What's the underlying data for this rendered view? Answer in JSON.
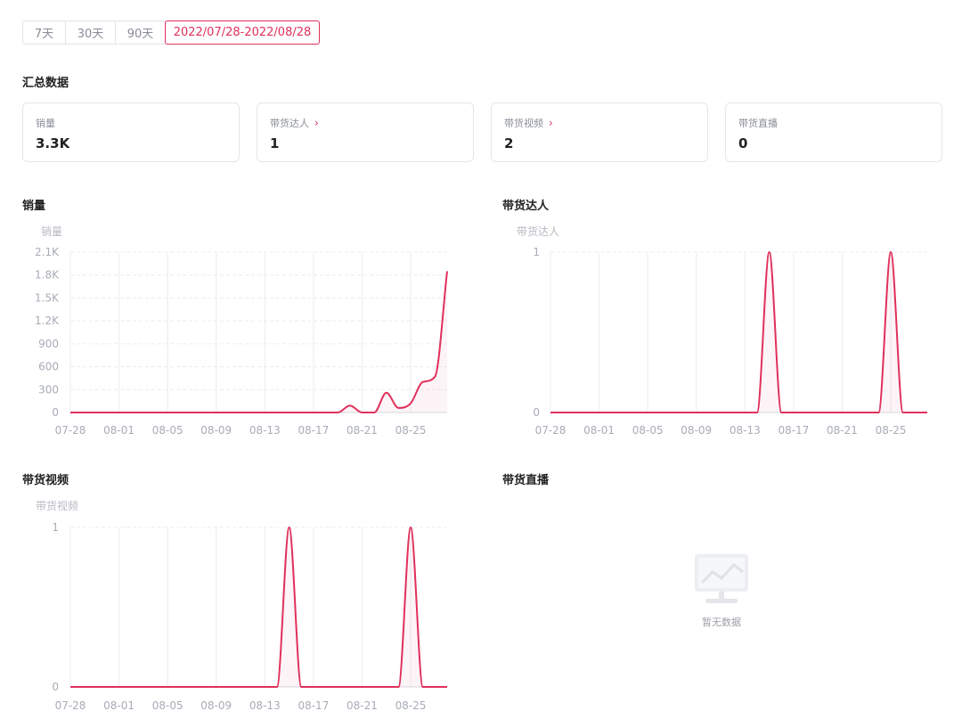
{
  "tabs": [
    {
      "label": "7天",
      "active": false
    },
    {
      "label": "30天",
      "active": false
    },
    {
      "label": "90天",
      "active": false
    },
    {
      "label": "2022/07/28-2022/08/28",
      "active": true
    }
  ],
  "summary": {
    "title": "汇总数据",
    "cards": [
      {
        "label": "销量",
        "value": "3.3K",
        "has_link": false
      },
      {
        "label": "带货达人",
        "value": "1",
        "has_link": true
      },
      {
        "label": "带货视频",
        "value": "2",
        "has_link": true
      },
      {
        "label": "带货直播",
        "value": "0",
        "has_link": false
      }
    ]
  },
  "sections": {
    "sales": "销量",
    "creators": "带货达人",
    "videos": "带货视频",
    "live": "带货直播"
  },
  "empty_state": {
    "message": "暂无数据",
    "icon": "chart-placeholder-icon"
  },
  "colors": {
    "accent": "#e0305b",
    "line": "#e0305b",
    "grid": "#ececf1"
  },
  "chart_data": [
    {
      "type": "line",
      "title": "销量",
      "ylabel": "销量",
      "ylim": [
        0,
        2100
      ],
      "yticks": [
        "0",
        "300",
        "600",
        "900",
        "1.2K",
        "1.5K",
        "1.8K",
        "2.1K"
      ],
      "xticks": [
        "07-28",
        "08-01",
        "08-05",
        "08-09",
        "08-13",
        "08-17",
        "08-21",
        "08-25"
      ],
      "x": [
        "07-28",
        "07-29",
        "07-30",
        "07-31",
        "08-01",
        "08-02",
        "08-03",
        "08-04",
        "08-05",
        "08-06",
        "08-07",
        "08-08",
        "08-09",
        "08-10",
        "08-11",
        "08-12",
        "08-13",
        "08-14",
        "08-15",
        "08-16",
        "08-17",
        "08-18",
        "08-19",
        "08-20",
        "08-21",
        "08-22",
        "08-23",
        "08-24",
        "08-25",
        "08-26",
        "08-27",
        "08-28"
      ],
      "values": [
        0,
        0,
        0,
        0,
        0,
        0,
        0,
        0,
        0,
        0,
        0,
        0,
        0,
        0,
        0,
        0,
        0,
        0,
        0,
        0,
        0,
        0,
        0,
        90,
        0,
        0,
        260,
        60,
        120,
        400,
        470,
        1850
      ]
    },
    {
      "type": "line",
      "title": "带货达人",
      "ylabel": "带货达人",
      "ylim": [
        0,
        1
      ],
      "yticks": [
        "0",
        "1"
      ],
      "xticks": [
        "07-28",
        "08-01",
        "08-05",
        "08-09",
        "08-13",
        "08-17",
        "08-21",
        "08-25"
      ],
      "x": [
        "07-28",
        "07-29",
        "07-30",
        "07-31",
        "08-01",
        "08-02",
        "08-03",
        "08-04",
        "08-05",
        "08-06",
        "08-07",
        "08-08",
        "08-09",
        "08-10",
        "08-11",
        "08-12",
        "08-13",
        "08-14",
        "08-15",
        "08-16",
        "08-17",
        "08-18",
        "08-19",
        "08-20",
        "08-21",
        "08-22",
        "08-23",
        "08-24",
        "08-25",
        "08-26",
        "08-27",
        "08-28"
      ],
      "values": [
        0,
        0,
        0,
        0,
        0,
        0,
        0,
        0,
        0,
        0,
        0,
        0,
        0,
        0,
        0,
        0,
        0,
        0,
        1,
        0,
        0,
        0,
        0,
        0,
        0,
        0,
        0,
        0,
        1,
        0,
        0,
        0
      ]
    },
    {
      "type": "line",
      "title": "带货视频",
      "ylabel": "带货视频",
      "ylim": [
        0,
        1
      ],
      "yticks": [
        "0",
        "1"
      ],
      "xticks": [
        "07-28",
        "08-01",
        "08-05",
        "08-09",
        "08-13",
        "08-17",
        "08-21",
        "08-25"
      ],
      "x": [
        "07-28",
        "07-29",
        "07-30",
        "07-31",
        "08-01",
        "08-02",
        "08-03",
        "08-04",
        "08-05",
        "08-06",
        "08-07",
        "08-08",
        "08-09",
        "08-10",
        "08-11",
        "08-12",
        "08-13",
        "08-14",
        "08-15",
        "08-16",
        "08-17",
        "08-18",
        "08-19",
        "08-20",
        "08-21",
        "08-22",
        "08-23",
        "08-24",
        "08-25",
        "08-26",
        "08-27",
        "08-28"
      ],
      "values": [
        0,
        0,
        0,
        0,
        0,
        0,
        0,
        0,
        0,
        0,
        0,
        0,
        0,
        0,
        0,
        0,
        0,
        0,
        1,
        0,
        0,
        0,
        0,
        0,
        0,
        0,
        0,
        0,
        1,
        0,
        0,
        0
      ]
    }
  ]
}
